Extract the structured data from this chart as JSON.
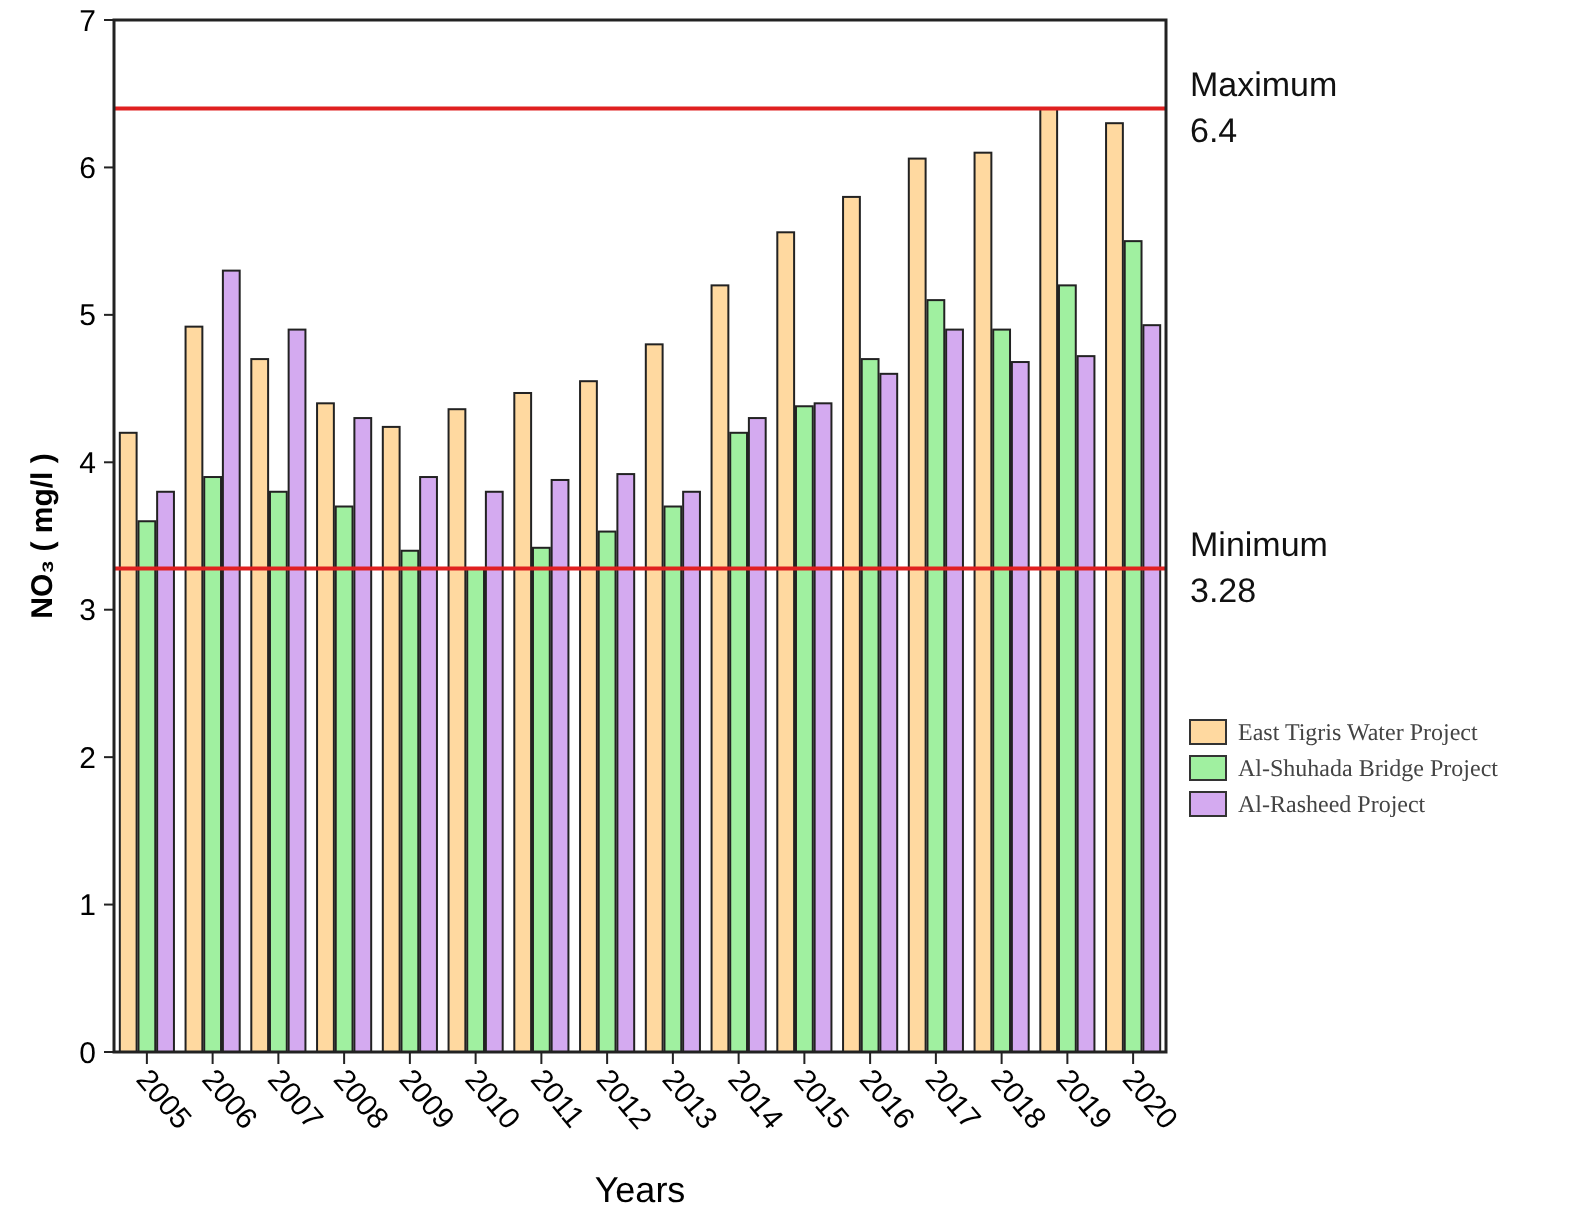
{
  "chart_data": {
    "type": "bar",
    "xlabel": "Years",
    "ylabel": "NO₃ ( mg/l )",
    "categories": [
      "2005",
      "2006",
      "2007",
      "2008",
      "2009",
      "2010",
      "2011",
      "2012",
      "2013",
      "2014",
      "2015",
      "2016",
      "2017",
      "2018",
      "2019",
      "2020"
    ],
    "series": [
      {
        "name": "East Tigris Water Project",
        "color": "#ffd9a0",
        "values": [
          4.2,
          4.92,
          4.7,
          4.4,
          4.24,
          4.36,
          4.47,
          4.55,
          4.8,
          5.2,
          5.56,
          5.8,
          6.06,
          6.1,
          6.4,
          6.3
        ]
      },
      {
        "name": "Al-Shuhada Bridge Project",
        "color": "#a0f0a0",
        "values": [
          3.6,
          3.9,
          3.8,
          3.7,
          3.4,
          3.28,
          3.42,
          3.53,
          3.7,
          4.2,
          4.38,
          4.7,
          5.1,
          4.9,
          5.2,
          5.5
        ]
      },
      {
        "name": "Al-Rasheed Project",
        "color": "#d4aaf0",
        "values": [
          3.8,
          5.3,
          4.9,
          4.3,
          3.9,
          3.8,
          3.88,
          3.92,
          3.8,
          4.3,
          4.4,
          4.6,
          4.9,
          4.68,
          4.72,
          4.93
        ]
      }
    ],
    "ylim": [
      0,
      7
    ],
    "yticks": [
      0,
      1,
      2,
      3,
      4,
      5,
      6,
      7
    ],
    "ref_lines": [
      {
        "axis": "y",
        "value": 6.4,
        "label": "Maximum\n6.4",
        "color": "#e02020"
      },
      {
        "axis": "y",
        "value": 3.28,
        "label": "Minimum\n3.28",
        "color": "#e02020"
      }
    ],
    "legend": "right",
    "grid": false
  }
}
